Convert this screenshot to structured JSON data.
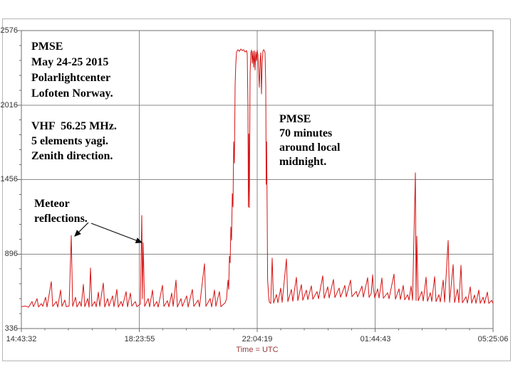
{
  "colors": {
    "bg": "#ffffff",
    "trace": "#d41414",
    "grid": "#8a8a8a",
    "frame": "#6f6f6f",
    "outer_frame": "#b5b5b5",
    "tick_label": "#333333",
    "xlabel": "#993b3b",
    "annotation": "#000000"
  },
  "chart_data": {
    "type": "line",
    "xlabel": "Time = UTC",
    "x_tick_labels": [
      "14:43:32",
      "18:23:55",
      "22:04:19",
      "01:44:43",
      "05:25:06"
    ],
    "y_tick_labels": [
      "2576",
      "2016",
      "1456",
      "896",
      "336"
    ],
    "y_ticks": [
      336,
      896,
      1456,
      2016,
      2576
    ],
    "ylim": [
      336,
      2576
    ],
    "x_range": [
      "14:43:32",
      "05:25:06"
    ],
    "grid": true,
    "legend": false,
    "baseline_value_approx": 500,
    "pmse_peak_value_approx": 2430,
    "annotations": {
      "station": "PMSE\nMay 24-25 2015\nPolarlightcenter\nLofoten Norway.",
      "equipment": "VHF  56.25 MHz.\n5 elements yagi.\nZenith direction.",
      "meteor": "Meteor\nreflections.",
      "pmse_event": "PMSE\n70 minutes\naround local\nmidnight."
    },
    "series": [
      {
        "color": "#d41414",
        "points": [
          [
            0,
            500
          ],
          [
            0.0091,
            505
          ],
          [
            0.0151,
            496
          ],
          [
            0.0227,
            539
          ],
          [
            0.0257,
            500
          ],
          [
            0.0332,
            561
          ],
          [
            0.0363,
            498
          ],
          [
            0.0423,
            523
          ],
          [
            0.0453,
            503
          ],
          [
            0.0514,
            571
          ],
          [
            0.0544,
            498
          ],
          [
            0.0634,
            689
          ],
          [
            0.0665,
            502
          ],
          [
            0.074,
            539
          ],
          [
            0.077,
            497
          ],
          [
            0.0831,
            625
          ],
          [
            0.0861,
            503
          ],
          [
            0.0921,
            550
          ],
          [
            0.0952,
            500
          ],
          [
            0.1012,
            505
          ],
          [
            0.1057,
            1036
          ],
          [
            0.1088,
            502
          ],
          [
            0.1148,
            571
          ],
          [
            0.1178,
            498
          ],
          [
            0.1239,
            539
          ],
          [
            0.1269,
            503
          ],
          [
            0.1314,
            668
          ],
          [
            0.1344,
            500
          ],
          [
            0.1405,
            561
          ],
          [
            0.1435,
            497
          ],
          [
            0.1465,
            791
          ],
          [
            0.1495,
            503
          ],
          [
            0.1556,
            539
          ],
          [
            0.1586,
            499
          ],
          [
            0.1631,
            609
          ],
          [
            0.1662,
            502
          ],
          [
            0.1737,
            678
          ],
          [
            0.1767,
            498
          ],
          [
            0.1828,
            561
          ],
          [
            0.1858,
            504
          ],
          [
            0.1934,
            582
          ],
          [
            0.1964,
            500
          ],
          [
            0.2024,
            630
          ],
          [
            0.2054,
            497
          ],
          [
            0.2115,
            539
          ],
          [
            0.2145,
            503
          ],
          [
            0.2221,
            614
          ],
          [
            0.2251,
            499
          ],
          [
            0.2311,
            603
          ],
          [
            0.2342,
            505
          ],
          [
            0.2417,
            539
          ],
          [
            0.2447,
            500
          ],
          [
            0.2523,
            520
          ],
          [
            0.2553,
            1186
          ],
          [
            0.2568,
            560
          ],
          [
            0.2583,
            980
          ],
          [
            0.2613,
            502
          ],
          [
            0.2689,
            561
          ],
          [
            0.2719,
            499
          ],
          [
            0.2779,
            625
          ],
          [
            0.281,
            503
          ],
          [
            0.287,
            539
          ],
          [
            0.29,
            497
          ],
          [
            0.2991,
            661
          ],
          [
            0.3021,
            502
          ],
          [
            0.3097,
            545
          ],
          [
            0.3127,
            499
          ],
          [
            0.3187,
            603
          ],
          [
            0.3218,
            503
          ],
          [
            0.3278,
            700
          ],
          [
            0.3308,
            498
          ],
          [
            0.3384,
            561
          ],
          [
            0.3414,
            502
          ],
          [
            0.3505,
            582
          ],
          [
            0.3535,
            498
          ],
          [
            0.3625,
            630
          ],
          [
            0.3656,
            503
          ],
          [
            0.3746,
            550
          ],
          [
            0.3776,
            499
          ],
          [
            0.3882,
            823
          ],
          [
            0.3912,
            503
          ],
          [
            0.4003,
            561
          ],
          [
            0.4033,
            499
          ],
          [
            0.4094,
            625
          ],
          [
            0.4124,
            503
          ],
          [
            0.4199,
            614
          ],
          [
            0.4229,
            500
          ],
          [
            0.429,
            520
          ],
          [
            0.432,
            530
          ],
          [
            0.435,
            560
          ],
          [
            0.4366,
            640
          ],
          [
            0.4381,
            700
          ],
          [
            0.4396,
            630
          ],
          [
            0.4411,
            880
          ],
          [
            0.4426,
            830
          ],
          [
            0.4441,
            1100
          ],
          [
            0.4456,
            1000
          ],
          [
            0.4471,
            1350
          ],
          [
            0.4486,
            1250
          ],
          [
            0.4502,
            1740
          ],
          [
            0.4517,
            1580
          ],
          [
            0.4532,
            2170
          ],
          [
            0.4547,
            2330
          ],
          [
            0.4562,
            2415
          ],
          [
            0.4592,
            2432
          ],
          [
            0.4623,
            2420
          ],
          [
            0.4653,
            2437
          ],
          [
            0.4683,
            2426
          ],
          [
            0.4713,
            2432
          ],
          [
            0.4743,
            2415
          ],
          [
            0.4773,
            2426
          ],
          [
            0.4789,
            2400
          ],
          [
            0.4804,
            2000
          ],
          [
            0.4813,
            1250
          ],
          [
            0.4822,
            1800
          ],
          [
            0.4834,
            1245
          ],
          [
            0.4849,
            2250
          ],
          [
            0.4864,
            2405
          ],
          [
            0.4879,
            2430
          ],
          [
            0.4894,
            2330
          ],
          [
            0.4909,
            2420
          ],
          [
            0.4924,
            2300
          ],
          [
            0.4939,
            2425
          ],
          [
            0.4955,
            2280
          ],
          [
            0.497,
            2415
          ],
          [
            0.4985,
            2350
          ],
          [
            0.5,
            2430
          ],
          [
            0.5015,
            2390
          ],
          [
            0.503,
            2270
          ],
          [
            0.5045,
            2150
          ],
          [
            0.506,
            2340
          ],
          [
            0.5076,
            2410
          ],
          [
            0.5091,
            2100
          ],
          [
            0.5106,
            2330
          ],
          [
            0.5121,
            2420
          ],
          [
            0.5136,
            2432
          ],
          [
            0.5151,
            2425
          ],
          [
            0.5166,
            2410
          ],
          [
            0.5181,
            2160
          ],
          [
            0.5191,
            1420
          ],
          [
            0.52,
            1740
          ],
          [
            0.5211,
            1200
          ],
          [
            0.5221,
            700
          ],
          [
            0.5233,
            640
          ],
          [
            0.5242,
            577
          ],
          [
            0.5257,
            535
          ],
          [
            0.5287,
            524
          ],
          [
            0.5317,
            866
          ],
          [
            0.5347,
            527
          ],
          [
            0.5408,
            592
          ],
          [
            0.5438,
            530
          ],
          [
            0.5498,
            640
          ],
          [
            0.5529,
            533
          ],
          [
            0.5619,
            860
          ],
          [
            0.5649,
            538
          ],
          [
            0.5725,
            630
          ],
          [
            0.5755,
            541
          ],
          [
            0.5831,
            721
          ],
          [
            0.5861,
            545
          ],
          [
            0.5937,
            667
          ],
          [
            0.5967,
            549
          ],
          [
            0.6042,
            625
          ],
          [
            0.6073,
            553
          ],
          [
            0.6148,
            657
          ],
          [
            0.6178,
            556
          ],
          [
            0.6269,
            614
          ],
          [
            0.6299,
            560
          ],
          [
            0.639,
            732
          ],
          [
            0.642,
            563
          ],
          [
            0.6495,
            650
          ],
          [
            0.6526,
            566
          ],
          [
            0.6616,
            705
          ],
          [
            0.6647,
            569
          ],
          [
            0.6737,
            640
          ],
          [
            0.6767,
            572
          ],
          [
            0.6858,
            660
          ],
          [
            0.6888,
            574
          ],
          [
            0.6979,
            700
          ],
          [
            0.7009,
            575
          ],
          [
            0.71,
            615
          ],
          [
            0.713,
            574
          ],
          [
            0.7221,
            655
          ],
          [
            0.7251,
            572
          ],
          [
            0.7342,
            718
          ],
          [
            0.7372,
            570
          ],
          [
            0.7417,
            600
          ],
          [
            0.7447,
            740
          ],
          [
            0.7462,
            640
          ],
          [
            0.7492,
            567
          ],
          [
            0.7553,
            635
          ],
          [
            0.7583,
            565
          ],
          [
            0.7644,
            716
          ],
          [
            0.7674,
            563
          ],
          [
            0.7764,
            605
          ],
          [
            0.7795,
            560
          ],
          [
            0.79,
            745
          ],
          [
            0.7931,
            557
          ],
          [
            0.8006,
            635
          ],
          [
            0.8036,
            554
          ],
          [
            0.8097,
            660
          ],
          [
            0.8127,
            552
          ],
          [
            0.8187,
            590
          ],
          [
            0.8218,
            550
          ],
          [
            0.8263,
            655
          ],
          [
            0.8293,
            548
          ],
          [
            0.8353,
            1507
          ],
          [
            0.8369,
            546
          ],
          [
            0.8384,
            1030
          ],
          [
            0.8414,
            545
          ],
          [
            0.8489,
            615
          ],
          [
            0.852,
            543
          ],
          [
            0.858,
            722
          ],
          [
            0.861,
            541
          ],
          [
            0.8671,
            605
          ],
          [
            0.8701,
            539
          ],
          [
            0.8761,
            726
          ],
          [
            0.8792,
            538
          ],
          [
            0.8852,
            590
          ],
          [
            0.8882,
            536
          ],
          [
            0.8943,
            700
          ],
          [
            0.8973,
            535
          ],
          [
            0.9048,
            999
          ],
          [
            0.9079,
            533
          ],
          [
            0.9154,
            817
          ],
          [
            0.9184,
            531
          ],
          [
            0.9245,
            632
          ],
          [
            0.9275,
            530
          ],
          [
            0.932,
            812
          ],
          [
            0.935,
            529
          ],
          [
            0.9426,
            575
          ],
          [
            0.9456,
            527
          ],
          [
            0.9517,
            650
          ],
          [
            0.9547,
            527
          ],
          [
            0.9607,
            588
          ],
          [
            0.9638,
            526
          ],
          [
            0.9698,
            625
          ],
          [
            0.9728,
            526
          ],
          [
            0.9789,
            572
          ],
          [
            0.9819,
            525
          ],
          [
            0.9879,
            610
          ],
          [
            0.9909,
            525
          ],
          [
            0.997,
            548
          ],
          [
            1,
            524
          ]
        ]
      }
    ]
  }
}
